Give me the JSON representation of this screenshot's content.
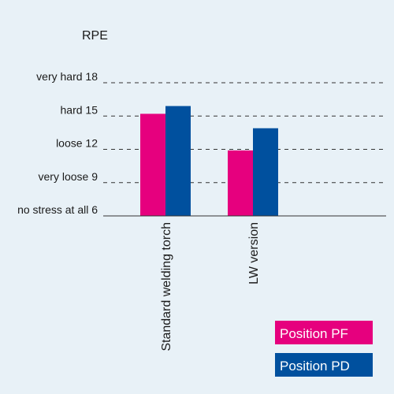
{
  "chart_data": {
    "type": "bar",
    "ylabel": "RPE",
    "ylim": [
      6,
      18
    ],
    "yticks": [
      {
        "value": 6,
        "label": "no stress at all 6"
      },
      {
        "value": 9,
        "label": "very loose 9"
      },
      {
        "value": 12,
        "label": "loose 12"
      },
      {
        "value": 15,
        "label": "hard 15"
      },
      {
        "value": 18,
        "label": "very hard 18"
      }
    ],
    "grid": "horizontal-dashed",
    "categories": [
      "Standard welding torch",
      "LW version"
    ],
    "series": [
      {
        "name": "Position PF",
        "color": "#e6007e",
        "values": [
          15.2,
          11.9
        ]
      },
      {
        "name": "Position PD",
        "color": "#00509e",
        "values": [
          15.9,
          13.9
        ]
      }
    ],
    "legend": "bottom-right"
  }
}
